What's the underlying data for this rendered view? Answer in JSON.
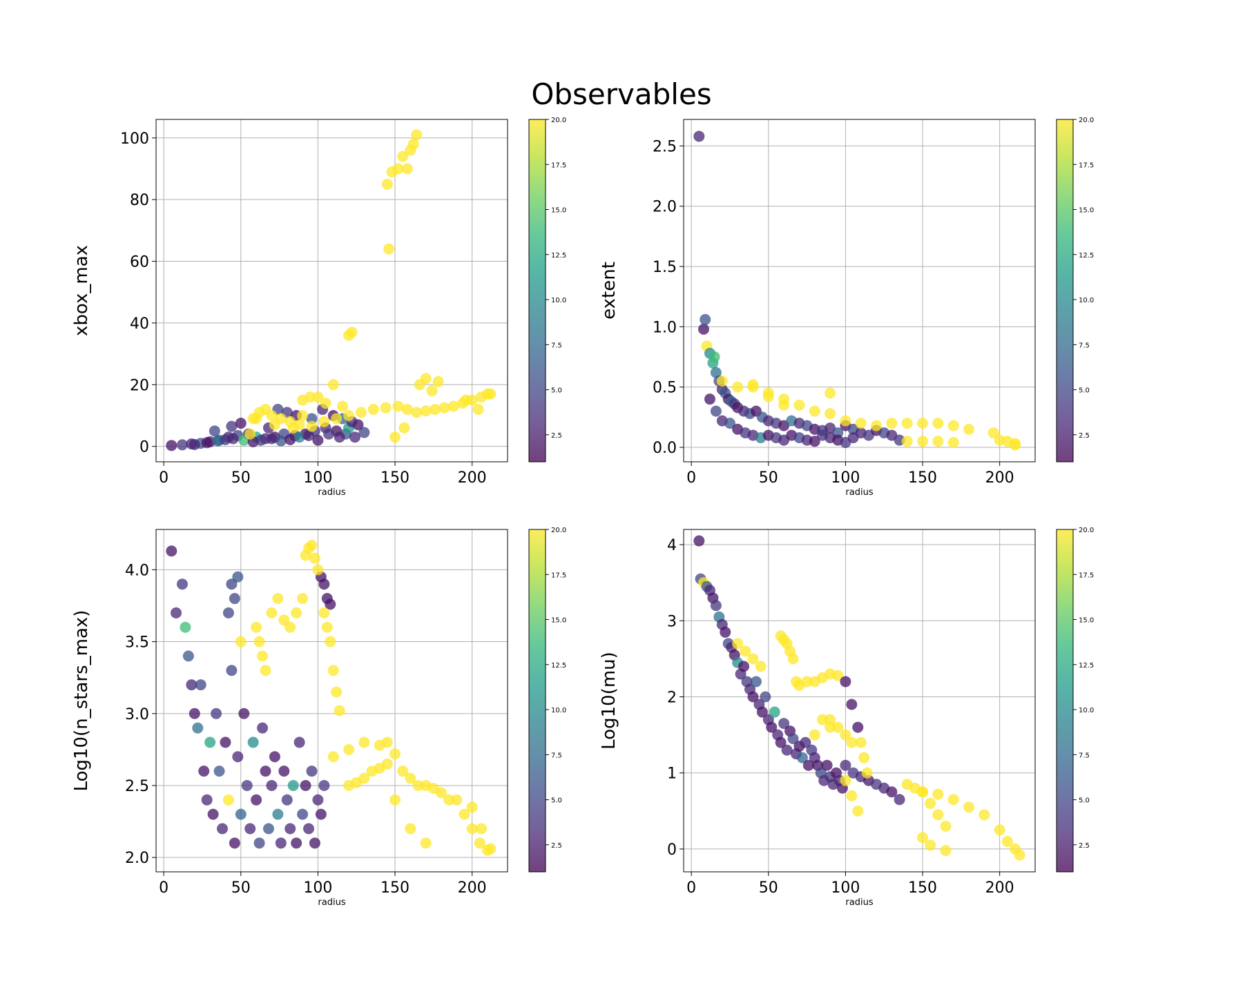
{
  "figure": {
    "title": "Observables"
  },
  "colormap": {
    "name": "viridis",
    "stops": [
      "#440154",
      "#482878",
      "#3e4989",
      "#31688e",
      "#26828e",
      "#1f9e89",
      "#35b779",
      "#6ece58",
      "#b5de2b",
      "#fde725"
    ],
    "range": [
      1,
      20
    ],
    "ticks": [
      "2.5",
      "5.0",
      "7.5",
      "10.0",
      "12.5",
      "15.0",
      "17.5",
      "20.0"
    ],
    "alpha": 0.75
  },
  "chart_data": [
    {
      "type": "scatter",
      "title": "",
      "xlabel": "radius",
      "ylabel": "xbox_max",
      "xlim": [
        -5,
        223
      ],
      "ylim": [
        -5,
        106
      ],
      "xticks": [
        0,
        50,
        100,
        150,
        200
      ],
      "yticks": [
        0,
        20,
        40,
        60,
        80,
        100
      ],
      "grid": true,
      "points_x": [
        5,
        12,
        18,
        24,
        30,
        36,
        42,
        48,
        55,
        60,
        66,
        72,
        78,
        85,
        92,
        98,
        105,
        112,
        118,
        124,
        130,
        20,
        28,
        35,
        40,
        45,
        52,
        58,
        63,
        70,
        76,
        82,
        88,
        94,
        100,
        107,
        114,
        120,
        126,
        33,
        44,
        50,
        56,
        68,
        74,
        80,
        86,
        96,
        103,
        110,
        116,
        122,
        60,
        72,
        84,
        96,
        104,
        112,
        120,
        128,
        136,
        144,
        152,
        158,
        164,
        170,
        176,
        182,
        188,
        194,
        200,
        206,
        212,
        166,
        170,
        174,
        178,
        196,
        204,
        210,
        145,
        148,
        152,
        155,
        158,
        160,
        162,
        164,
        146,
        120,
        122,
        90,
        95,
        100,
        105,
        110,
        116,
        62,
        66,
        70,
        76,
        82,
        88,
        150,
        156,
        58,
        90
      ],
      "points_y": [
        0.3,
        0.5,
        0.8,
        1.0,
        1.5,
        2.0,
        3.0,
        3.5,
        4.0,
        3.0,
        2.5,
        3.0,
        4.0,
        3.5,
        4.0,
        5.0,
        6.0,
        5.0,
        4.0,
        3.0,
        4.5,
        0.6,
        1.2,
        1.8,
        2.2,
        2.5,
        2.0,
        1.5,
        2.0,
        2.5,
        1.8,
        2.2,
        3.0,
        3.5,
        2.0,
        4.0,
        3.0,
        6.0,
        7.0,
        5.0,
        6.5,
        7.5,
        4.0,
        6.0,
        12.0,
        11.0,
        10.0,
        9.0,
        12.0,
        10.0,
        9.0,
        8.0,
        9.0,
        7.0,
        6.0,
        6.5,
        8.0,
        9.0,
        10.0,
        11.0,
        12.0,
        12.5,
        13.0,
        12.0,
        11.0,
        11.5,
        12.0,
        12.5,
        13.0,
        14.0,
        15.0,
        16.0,
        17.0,
        20.0,
        22.0,
        18.0,
        21.0,
        15.0,
        12.0,
        17.0,
        85.0,
        89.0,
        90.0,
        94.0,
        90.0,
        96.0,
        98.0,
        101.0,
        64.0,
        36.0,
        37.0,
        15.0,
        16.0,
        16.0,
        14.0,
        20.0,
        13.0,
        11.0,
        12.0,
        10.0,
        9.0,
        8.0,
        7.0,
        3.0,
        6.0,
        9.0,
        10.0
      ],
      "points_c": [
        2,
        4,
        3,
        6,
        2,
        8,
        3,
        5,
        2,
        12,
        3,
        2,
        5,
        3,
        2,
        4,
        3,
        2,
        6,
        3,
        5,
        3,
        2,
        7,
        4,
        3,
        14,
        2,
        4,
        3,
        6,
        2,
        9,
        3,
        2,
        4,
        3,
        11,
        2,
        5,
        4,
        2,
        20,
        3,
        5,
        4,
        2,
        6,
        3,
        2,
        7,
        3,
        20,
        20,
        20,
        20,
        20,
        20,
        20,
        20,
        20,
        20,
        20,
        20,
        20,
        20,
        20,
        20,
        20,
        20,
        20,
        20,
        20,
        20,
        20,
        20,
        20,
        20,
        20,
        20,
        20,
        20,
        20,
        20,
        20,
        20,
        20,
        20,
        20,
        20,
        20,
        20,
        20,
        20,
        20,
        20,
        20,
        20,
        20,
        20,
        20,
        20,
        20,
        20,
        20,
        20,
        20
      ]
    },
    {
      "type": "scatter",
      "title": "",
      "xlabel": "radius",
      "ylabel": "extent",
      "xlim": [
        -5,
        223
      ],
      "ylim": [
        -0.12,
        2.72
      ],
      "xticks": [
        0,
        50,
        100,
        150,
        200
      ],
      "yticks": [
        0.0,
        0.5,
        1.0,
        1.5,
        2.0,
        2.5
      ],
      "grid": true,
      "points_x": [
        5,
        8,
        9,
        10,
        12,
        14,
        15,
        16,
        18,
        20,
        22,
        24,
        26,
        28,
        30,
        34,
        38,
        42,
        46,
        50,
        55,
        60,
        65,
        70,
        75,
        80,
        85,
        90,
        95,
        100,
        105,
        110,
        115,
        120,
        125,
        130,
        135,
        12,
        16,
        20,
        25,
        30,
        35,
        40,
        45,
        50,
        55,
        60,
        65,
        70,
        75,
        80,
        85,
        90,
        95,
        100,
        105,
        20,
        30,
        40,
        50,
        60,
        70,
        80,
        90,
        100,
        110,
        120,
        130,
        140,
        150,
        160,
        170,
        180,
        140,
        150,
        160,
        170,
        200,
        205,
        210,
        210,
        196,
        50,
        40,
        60,
        90
      ],
      "points_y": [
        2.58,
        0.98,
        1.06,
        0.84,
        0.78,
        0.7,
        0.75,
        0.62,
        0.55,
        0.48,
        0.45,
        0.4,
        0.38,
        0.36,
        0.33,
        0.3,
        0.28,
        0.3,
        0.25,
        0.22,
        0.2,
        0.18,
        0.22,
        0.2,
        0.18,
        0.15,
        0.14,
        0.16,
        0.12,
        0.18,
        0.15,
        0.12,
        0.1,
        0.14,
        0.12,
        0.1,
        0.06,
        0.4,
        0.3,
        0.22,
        0.2,
        0.15,
        0.12,
        0.1,
        0.08,
        0.1,
        0.08,
        0.06,
        0.1,
        0.08,
        0.06,
        0.05,
        0.1,
        0.08,
        0.06,
        0.04,
        0.08,
        0.55,
        0.5,
        0.52,
        0.45,
        0.4,
        0.35,
        0.3,
        0.28,
        0.22,
        0.2,
        0.18,
        0.2,
        0.2,
        0.2,
        0.2,
        0.18,
        0.15,
        0.05,
        0.05,
        0.05,
        0.04,
        0.06,
        0.05,
        0.03,
        0.02,
        0.12,
        0.42,
        0.5,
        0.35,
        0.45
      ],
      "points_c": [
        3,
        2,
        6,
        20,
        10,
        12,
        14,
        8,
        5,
        3,
        6,
        2,
        7,
        4,
        2,
        3,
        5,
        2,
        6,
        3,
        4,
        2,
        8,
        3,
        5,
        2,
        4,
        3,
        6,
        2,
        5,
        3,
        4,
        2,
        5,
        3,
        4,
        2,
        5,
        3,
        6,
        2,
        4,
        3,
        9,
        2,
        4,
        3,
        2,
        5,
        3,
        2,
        4,
        3,
        2,
        4,
        3,
        20,
        20,
        20,
        20,
        20,
        20,
        20,
        20,
        20,
        20,
        20,
        20,
        20,
        20,
        20,
        20,
        20,
        20,
        20,
        20,
        20,
        20,
        20,
        20,
        20,
        20,
        20,
        20,
        20,
        20
      ]
    },
    {
      "type": "scatter",
      "title": "",
      "xlabel": "radius",
      "ylabel": "Log10(n_stars_max)",
      "xlim": [
        -5,
        223
      ],
      "ylim": [
        1.9,
        4.28
      ],
      "xticks": [
        0,
        50,
        100,
        150,
        200
      ],
      "yticks": [
        2.0,
        2.5,
        3.0,
        3.5,
        4.0
      ],
      "grid": true,
      "points_x": [
        5,
        8,
        12,
        14,
        16,
        18,
        20,
        22,
        24,
        26,
        28,
        30,
        32,
        34,
        36,
        38,
        40,
        42,
        44,
        46,
        48,
        50,
        52,
        54,
        56,
        58,
        60,
        62,
        64,
        66,
        68,
        70,
        72,
        74,
        76,
        78,
        80,
        82,
        84,
        86,
        88,
        90,
        92,
        94,
        96,
        98,
        100,
        102,
        104,
        44,
        46,
        48,
        42,
        50,
        102,
        104,
        106,
        108,
        92,
        94,
        96,
        98,
        100,
        104,
        106,
        108,
        110,
        112,
        114,
        60,
        62,
        64,
        66,
        70,
        74,
        78,
        82,
        86,
        90,
        110,
        120,
        130,
        140,
        145,
        150,
        155,
        160,
        165,
        170,
        175,
        180,
        185,
        190,
        195,
        200,
        205,
        210,
        150,
        160,
        170,
        200,
        206,
        212,
        120,
        125,
        130,
        135,
        140,
        145
      ],
      "points_y": [
        4.13,
        3.7,
        3.9,
        3.6,
        3.4,
        3.2,
        3.0,
        2.9,
        3.2,
        2.6,
        2.4,
        2.8,
        2.3,
        3.0,
        2.6,
        2.2,
        2.8,
        2.4,
        3.3,
        2.1,
        2.7,
        2.3,
        3.0,
        2.5,
        2.2,
        2.8,
        2.4,
        2.1,
        2.9,
        2.6,
        2.2,
        2.5,
        2.7,
        2.3,
        2.1,
        2.6,
        2.4,
        2.2,
        2.5,
        2.1,
        2.8,
        2.3,
        2.5,
        2.2,
        2.6,
        2.1,
        2.4,
        2.3,
        2.5,
        3.9,
        3.8,
        3.95,
        3.7,
        3.5,
        3.95,
        3.9,
        3.8,
        3.76,
        4.1,
        4.15,
        4.17,
        4.08,
        4.0,
        3.7,
        3.6,
        3.5,
        3.3,
        3.15,
        3.02,
        3.6,
        3.5,
        3.4,
        3.3,
        3.7,
        3.8,
        3.65,
        3.6,
        3.7,
        3.8,
        2.7,
        2.75,
        2.8,
        2.78,
        2.8,
        2.72,
        2.6,
        2.55,
        2.5,
        2.5,
        2.48,
        2.45,
        2.4,
        2.4,
        2.3,
        2.2,
        2.1,
        2.05,
        2.4,
        2.2,
        2.1,
        2.35,
        2.2,
        2.06,
        2.5,
        2.52,
        2.55,
        2.6,
        2.62,
        2.65
      ],
      "points_c": [
        2,
        3,
        4,
        14,
        6,
        3,
        2,
        8,
        5,
        2,
        3,
        12,
        2,
        4,
        6,
        3,
        2,
        20,
        5,
        2,
        3,
        7,
        2,
        4,
        3,
        10,
        2,
        5,
        3,
        2,
        6,
        3,
        2,
        9,
        3,
        2,
        4,
        3,
        11,
        2,
        3,
        5,
        2,
        3,
        4,
        2,
        3,
        2,
        4,
        5,
        5,
        6,
        5,
        20,
        2,
        2,
        2,
        2,
        20,
        20,
        20,
        20,
        20,
        20,
        20,
        20,
        20,
        20,
        20,
        20,
        20,
        20,
        20,
        20,
        20,
        20,
        20,
        20,
        20,
        20,
        20,
        20,
        20,
        20,
        20,
        20,
        20,
        20,
        20,
        20,
        20,
        20,
        20,
        20,
        20,
        20,
        20,
        20,
        20,
        20,
        20,
        20,
        20,
        20,
        20,
        20,
        20,
        20,
        20
      ]
    },
    {
      "type": "scatter",
      "title": "",
      "xlabel": "radius",
      "ylabel": "Log10(mu)",
      "xlim": [
        -5,
        223
      ],
      "ylim": [
        -0.3,
        4.2
      ],
      "xticks": [
        0,
        50,
        100,
        150,
        200
      ],
      "yticks": [
        0,
        1,
        2,
        3,
        4
      ],
      "grid": true,
      "points_x": [
        5,
        6,
        8,
        10,
        12,
        14,
        16,
        18,
        20,
        22,
        24,
        26,
        28,
        30,
        32,
        34,
        36,
        38,
        40,
        42,
        44,
        46,
        48,
        50,
        52,
        54,
        56,
        58,
        60,
        62,
        64,
        66,
        68,
        70,
        72,
        74,
        76,
        78,
        80,
        82,
        84,
        86,
        88,
        90,
        92,
        94,
        96,
        98,
        100,
        105,
        110,
        115,
        120,
        125,
        130,
        135,
        58,
        60,
        62,
        64,
        66,
        68,
        70,
        75,
        80,
        85,
        90,
        95,
        100,
        104,
        108,
        110,
        112,
        114,
        100,
        104,
        108,
        90,
        95,
        100,
        104,
        150,
        160,
        170,
        180,
        190,
        200,
        205,
        210,
        213,
        140,
        145,
        150,
        155,
        160,
        165,
        150,
        155,
        165,
        80,
        85,
        90,
        30,
        35,
        40,
        45
      ],
      "points_y": [
        4.05,
        3.55,
        3.5,
        3.45,
        3.4,
        3.3,
        3.2,
        3.05,
        2.95,
        2.85,
        2.7,
        2.65,
        2.55,
        2.45,
        2.3,
        2.4,
        2.2,
        2.1,
        2.0,
        2.2,
        1.9,
        1.8,
        2.0,
        1.7,
        1.6,
        1.8,
        1.5,
        1.4,
        1.65,
        1.3,
        1.55,
        1.45,
        1.25,
        1.35,
        1.2,
        1.4,
        1.1,
        1.3,
        1.2,
        1.1,
        1.0,
        0.9,
        1.1,
        0.95,
        0.85,
        1.0,
        0.9,
        0.8,
        1.1,
        1.0,
        0.95,
        0.9,
        0.85,
        0.8,
        0.75,
        0.65,
        2.8,
        2.75,
        2.7,
        2.6,
        2.5,
        2.2,
        2.15,
        2.2,
        2.2,
        2.25,
        2.3,
        2.28,
        2.2,
        1.9,
        1.6,
        1.4,
        1.2,
        1.0,
        0.9,
        0.7,
        0.5,
        1.7,
        1.6,
        1.5,
        1.4,
        0.75,
        0.72,
        0.65,
        0.55,
        0.45,
        0.25,
        0.1,
        0.0,
        -0.08,
        0.85,
        0.8,
        0.75,
        0.6,
        0.45,
        0.3,
        0.15,
        0.05,
        -0.02,
        1.5,
        1.7,
        1.6,
        2.7,
        2.6,
        2.5,
        2.4
      ],
      "points_c": [
        2,
        5,
        20,
        6,
        3,
        2,
        4,
        8,
        3,
        2,
        5,
        3,
        2,
        10,
        3,
        2,
        4,
        3,
        2,
        6,
        3,
        2,
        5,
        3,
        2,
        12,
        3,
        2,
        4,
        3,
        2,
        5,
        3,
        2,
        7,
        3,
        2,
        4,
        3,
        2,
        5,
        3,
        2,
        4,
        3,
        2,
        3,
        2,
        3,
        4,
        3,
        2,
        4,
        3,
        2,
        3,
        20,
        20,
        20,
        20,
        20,
        20,
        20,
        20,
        20,
        20,
        20,
        20,
        2,
        2,
        2,
        20,
        20,
        20,
        20,
        20,
        20,
        20,
        20,
        20,
        20,
        20,
        20,
        20,
        20,
        20,
        20,
        20,
        20,
        20,
        20,
        20,
        20,
        20,
        20,
        20,
        20,
        20,
        20,
        20,
        20,
        20,
        20,
        20,
        20,
        20
      ]
    }
  ]
}
